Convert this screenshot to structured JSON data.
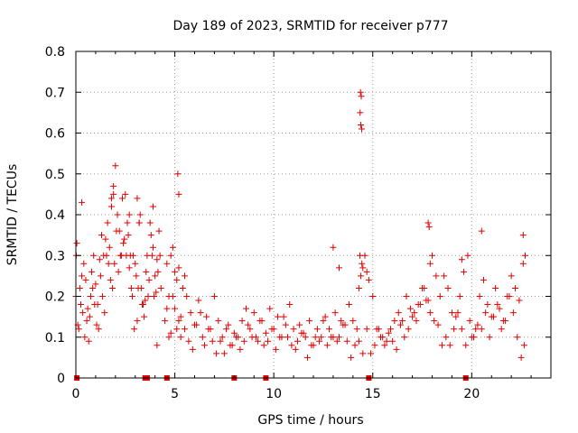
{
  "chart_data": {
    "type": "scatter",
    "title": "Day 189 of 2023, SRMTID for receiver p777",
    "xlabel": "GPS time / hours",
    "ylabel": "SRMTID / TECUs",
    "xlim": [
      0,
      24
    ],
    "ylim": [
      0,
      0.8
    ],
    "xticks": [
      0,
      5,
      10,
      15,
      20
    ],
    "xtick_labels": [
      "0",
      "5",
      "10",
      "15",
      "20"
    ],
    "yticks": [
      0,
      0.1,
      0.2,
      0.3,
      0.4,
      0.5,
      0.6,
      0.7,
      0.8
    ],
    "ytick_labels": [
      "0",
      "0.1",
      "0.2",
      "0.3",
      "0.4",
      "0.5",
      "0.6",
      "0.7",
      "0.8"
    ],
    "grid": true,
    "marker": "plus",
    "series": [
      {
        "name": "SRMTID",
        "color": "#e00000",
        "x": [
          0.0,
          0.1,
          0.2,
          0.3,
          0.4,
          0.5,
          0.6,
          0.7,
          0.8,
          0.9,
          1.0,
          1.1,
          1.2,
          1.3,
          1.4,
          1.5,
          1.6,
          1.7,
          1.8,
          1.9,
          2.0,
          2.1,
          2.2,
          2.3,
          2.4,
          2.5,
          2.6,
          2.7,
          2.8,
          2.9,
          3.0,
          3.1,
          3.2,
          3.3,
          3.4,
          3.5,
          3.6,
          3.7,
          3.8,
          3.9,
          4.0,
          4.1,
          4.2,
          4.3,
          4.5,
          4.6,
          4.7,
          4.8,
          4.9,
          5.0,
          5.1,
          5.2,
          5.3,
          5.4,
          5.5,
          5.6,
          5.8,
          6.0,
          6.2,
          6.4,
          6.6,
          6.8,
          7.0,
          7.2,
          7.4,
          7.6,
          7.8,
          8.0,
          8.2,
          8.4,
          8.6,
          8.8,
          9.0,
          9.2,
          9.4,
          9.6,
          9.8,
          10.0,
          10.2,
          10.4,
          10.6,
          10.8,
          11.0,
          11.2,
          11.4,
          11.6,
          11.8,
          12.0,
          12.2,
          12.4,
          12.6,
          12.8,
          13.0,
          13.2,
          13.4,
          13.6,
          13.8,
          14.0,
          14.2,
          14.3,
          14.35,
          14.4,
          14.45,
          14.5,
          14.6,
          14.7,
          14.8,
          15.0,
          15.2,
          15.4,
          15.6,
          15.8,
          16.0,
          16.2,
          16.4,
          16.6,
          16.8,
          17.0,
          17.2,
          17.4,
          17.6,
          17.8,
          17.9,
          18.0,
          18.2,
          18.4,
          18.6,
          18.8,
          19.0,
          19.2,
          19.4,
          19.6,
          19.8,
          20.0,
          20.2,
          20.4,
          20.6,
          20.8,
          21.0,
          21.2,
          21.4,
          21.6,
          21.8,
          22.0,
          22.2,
          22.4,
          22.6,
          22.7,
          0.05,
          0.15,
          0.25,
          0.35,
          0.45,
          0.55,
          0.65,
          0.75,
          0.85,
          0.95,
          1.05,
          1.15,
          1.25,
          1.35,
          1.45,
          1.55,
          1.65,
          1.75,
          1.85,
          1.95,
          2.05,
          2.15,
          2.25,
          2.35,
          2.45,
          2.55,
          2.65,
          2.75,
          2.85,
          2.95,
          3.05,
          3.15,
          3.25,
          3.35,
          3.45,
          3.55,
          3.65,
          3.75,
          3.85,
          3.95,
          4.05,
          4.15,
          4.25,
          4.6,
          4.7,
          4.8,
          4.9,
          5.0,
          5.1,
          5.2,
          5.3,
          5.5,
          5.7,
          5.9,
          6.1,
          6.3,
          6.5,
          6.7,
          6.9,
          7.1,
          7.3,
          7.5,
          7.7,
          7.9,
          8.1,
          8.3,
          8.5,
          8.7,
          8.9,
          9.1,
          9.3,
          9.5,
          9.7,
          9.9,
          10.1,
          10.3,
          10.5,
          10.7,
          10.9,
          11.1,
          11.3,
          11.5,
          11.7,
          11.9,
          12.1,
          12.3,
          12.5,
          12.7,
          12.9,
          13.1,
          13.3,
          13.5,
          13.7,
          13.9,
          14.1,
          14.3,
          14.5,
          14.7,
          14.9,
          15.1,
          15.3,
          15.5,
          15.7,
          15.9,
          16.1,
          16.3,
          16.5,
          16.7,
          16.9,
          17.1,
          17.3,
          17.5,
          17.7,
          17.9,
          18.1,
          18.3,
          18.5,
          18.7,
          18.9,
          19.1,
          19.3,
          19.5,
          19.7,
          19.9,
          20.1,
          20.3,
          20.5,
          20.7,
          20.9,
          21.1,
          21.3,
          21.5,
          21.7,
          21.9,
          22.1,
          22.3,
          22.5,
          22.65,
          0.02,
          0.3,
          1.8,
          1.9,
          2.7,
          3.1,
          3.2,
          3.9,
          4.1,
          5.15,
          5.2,
          13.0,
          13.3,
          14.38,
          14.42,
          14.36,
          14.4,
          14.44,
          17.8,
          17.85,
          19.5,
          20.5,
          22.6
        ],
        "y": [
          0.2,
          0.13,
          0.22,
          0.25,
          0.28,
          0.24,
          0.17,
          0.15,
          0.26,
          0.3,
          0.23,
          0.18,
          0.29,
          0.35,
          0.3,
          0.34,
          0.38,
          0.32,
          0.42,
          0.47,
          0.52,
          0.4,
          0.36,
          0.3,
          0.33,
          0.45,
          0.38,
          0.27,
          0.22,
          0.3,
          0.28,
          0.44,
          0.38,
          0.22,
          0.18,
          0.19,
          0.3,
          0.24,
          0.35,
          0.32,
          0.25,
          0.29,
          0.36,
          0.22,
          0.14,
          0.28,
          0.2,
          0.3,
          0.32,
          0.26,
          0.24,
          0.27,
          0.15,
          0.22,
          0.25,
          0.2,
          0.16,
          0.13,
          0.19,
          0.1,
          0.15,
          0.12,
          0.2,
          0.14,
          0.1,
          0.12,
          0.08,
          0.11,
          0.1,
          0.14,
          0.17,
          0.12,
          0.16,
          0.09,
          0.14,
          0.11,
          0.17,
          0.12,
          0.15,
          0.1,
          0.13,
          0.18,
          0.12,
          0.09,
          0.11,
          0.1,
          0.14,
          0.08,
          0.12,
          0.1,
          0.15,
          0.12,
          0.1,
          0.09,
          0.14,
          0.13,
          0.18,
          0.14,
          0.12,
          0.22,
          0.3,
          0.25,
          0.28,
          0.27,
          0.3,
          0.26,
          0.24,
          0.2,
          0.12,
          0.1,
          0.08,
          0.11,
          0.09,
          0.07,
          0.13,
          0.1,
          0.12,
          0.15,
          0.14,
          0.18,
          0.22,
          0.19,
          0.28,
          0.3,
          0.25,
          0.2,
          0.25,
          0.22,
          0.16,
          0.15,
          0.2,
          0.26,
          0.3,
          0.1,
          0.12,
          0.2,
          0.24,
          0.18,
          0.15,
          0.22,
          0.17,
          0.14,
          0.2,
          0.25,
          0.22,
          0.19,
          0.28,
          0.3,
          0.33,
          0.12,
          0.18,
          0.16,
          0.1,
          0.14,
          0.09,
          0.2,
          0.22,
          0.18,
          0.13,
          0.12,
          0.25,
          0.2,
          0.16,
          0.3,
          0.28,
          0.24,
          0.22,
          0.28,
          0.36,
          0.26,
          0.3,
          0.44,
          0.34,
          0.3,
          0.35,
          0.3,
          0.2,
          0.12,
          0.25,
          0.22,
          0.4,
          0.18,
          0.15,
          0.26,
          0.2,
          0.38,
          0.3,
          0.2,
          0.21,
          0.26,
          0.3,
          0.17,
          0.1,
          0.11,
          0.2,
          0.17,
          0.12,
          0.14,
          0.1,
          0.12,
          0.09,
          0.07,
          0.13,
          0.16,
          0.08,
          0.12,
          0.09,
          0.06,
          0.09,
          0.06,
          0.13,
          0.08,
          0.1,
          0.07,
          0.09,
          0.13,
          0.1,
          0.1,
          0.14,
          0.08,
          0.09,
          0.12,
          0.07,
          0.1,
          0.15,
          0.1,
          0.08,
          0.07,
          0.13,
          0.11,
          0.05,
          0.08,
          0.1,
          0.09,
          0.14,
          0.08,
          0.1,
          0.16,
          0.1,
          0.13,
          0.09,
          0.05,
          0.08,
          0.09,
          0.06,
          0.12,
          0.06,
          0.08,
          0.12,
          0.1,
          0.09,
          0.12,
          0.14,
          0.16,
          0.14,
          0.2,
          0.17,
          0.16,
          0.18,
          0.22,
          0.19,
          0.16,
          0.14,
          0.13,
          0.08,
          0.1,
          0.08,
          0.12,
          0.16,
          0.12,
          0.08,
          0.14,
          0.1,
          0.13,
          0.12,
          0.16,
          0.1,
          0.15,
          0.18,
          0.12,
          0.14,
          0.2,
          0.16,
          0.1,
          0.05,
          0.08,
          0.3,
          0.43,
          0.44,
          0.45,
          0.4,
          0.14,
          0.38,
          0.42,
          0.08,
          0.5,
          0.45,
          0.32,
          0.27,
          0.7,
          0.69,
          0.65,
          0.62,
          0.61,
          0.38,
          0.37,
          0.29,
          0.36,
          0.35
        ]
      }
    ],
    "baseline_markers_x": [
      0.05,
      3.5,
      3.6,
      4.6,
      8.0,
      9.6,
      14.8,
      19.7
    ]
  }
}
